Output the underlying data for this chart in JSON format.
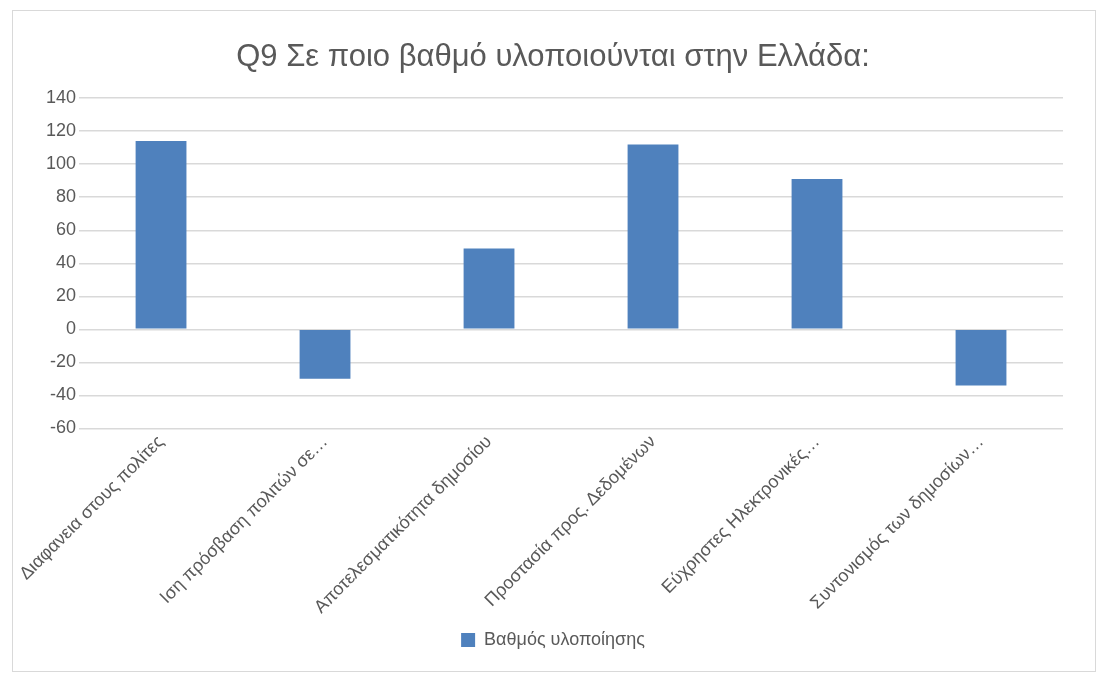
{
  "chart_data": {
    "type": "bar",
    "title": "Q9 Σε ποιο βαθμό υλοποιούνται στην Ελλάδα:",
    "categories": [
      "Διαφανεια στους πολίτες",
      "Ιση πρόσβαση πολιτών σε…",
      "Αποτελεσματικότητα δημοσίου",
      "Προστασία προς. Δεδομένων",
      "Εύχρηστες Ηλεκτρονικές…",
      "Συντονισμός των δημοσίων…"
    ],
    "series": [
      {
        "name": "Βαθμός υλοποίησης",
        "color": "#4f81bd",
        "values": [
          114,
          -30,
          49,
          112,
          91,
          -34
        ]
      }
    ],
    "ylim": [
      -60,
      140
    ],
    "yticks": [
      -60,
      -40,
      -20,
      0,
      20,
      40,
      60,
      80,
      100,
      120,
      140
    ],
    "grid": "y",
    "legend": "bottom"
  }
}
